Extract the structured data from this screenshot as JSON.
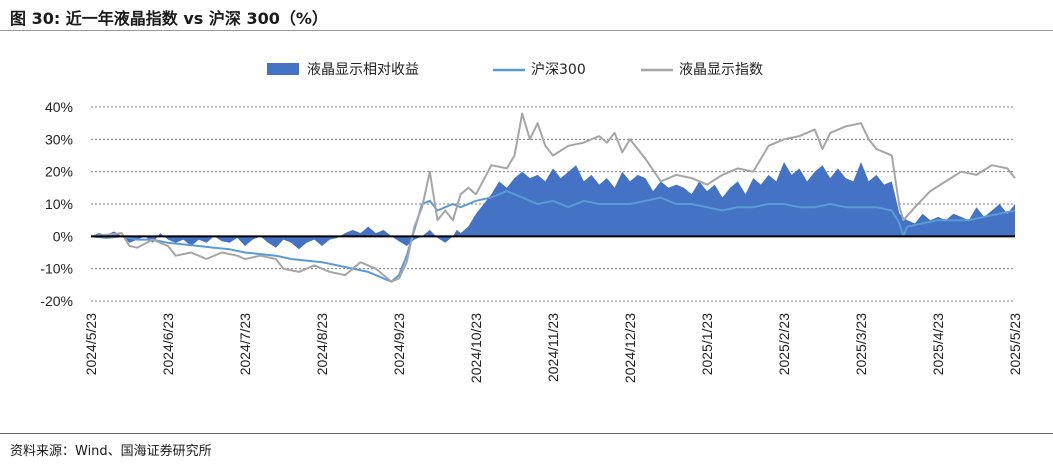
{
  "header": {
    "title": "图 30:  近一年液晶指数 vs 沪深 300（%）"
  },
  "footer": {
    "source": "资料来源：Wind、国海证券研究所"
  },
  "chart_data": {
    "type": "area",
    "title": "近一年液晶指数 vs 沪深 300（%）",
    "xlabel": "",
    "ylabel": "",
    "ylim": [
      -20,
      40
    ],
    "yticks": [
      "40%",
      "30%",
      "20%",
      "10%",
      "0%",
      "-10%",
      "-20%"
    ],
    "yticks_values": [
      40,
      30,
      20,
      10,
      0,
      -10,
      -20
    ],
    "categories": [
      "2024/5/23",
      "2024/6/23",
      "2024/7/23",
      "2024/8/23",
      "2024/9/23",
      "2024/10/23",
      "2024/11/23",
      "2024/12/23",
      "2025/1/23",
      "2025/2/23",
      "2025/3/23",
      "2025/4/23",
      "2025/5/23"
    ],
    "grid": "horizontal dashed",
    "legend_position": "top",
    "series": [
      {
        "name": "液晶显示相对收益",
        "kind": "area",
        "color": "#4472C4",
        "points": [
          [
            0,
            0
          ],
          [
            0.1,
            1
          ],
          [
            0.2,
            0.5
          ],
          [
            0.3,
            1.5
          ],
          [
            0.4,
            0
          ],
          [
            0.5,
            -2
          ],
          [
            0.6,
            -1
          ],
          [
            0.7,
            0
          ],
          [
            0.8,
            -2
          ],
          [
            0.9,
            1
          ],
          [
            1.0,
            -1
          ],
          [
            1.1,
            -2
          ],
          [
            1.2,
            -1
          ],
          [
            1.3,
            -3
          ],
          [
            1.4,
            -1
          ],
          [
            1.5,
            -2
          ],
          [
            1.6,
            0
          ],
          [
            1.7,
            -1.5
          ],
          [
            1.8,
            -2
          ],
          [
            1.9,
            -0.5
          ],
          [
            2.0,
            -3
          ],
          [
            2.1,
            -1
          ],
          [
            2.2,
            0
          ],
          [
            2.3,
            -2
          ],
          [
            2.4,
            -3.5
          ],
          [
            2.5,
            -1
          ],
          [
            2.6,
            -2
          ],
          [
            2.7,
            -4
          ],
          [
            2.8,
            -2
          ],
          [
            2.9,
            -1
          ],
          [
            3.0,
            -3
          ],
          [
            3.1,
            -1
          ],
          [
            3.2,
            -0.5
          ],
          [
            3.3,
            1
          ],
          [
            3.4,
            2
          ],
          [
            3.5,
            1
          ],
          [
            3.6,
            3
          ],
          [
            3.7,
            1
          ],
          [
            3.8,
            2
          ],
          [
            3.9,
            0
          ],
          [
            4.0,
            -1.5
          ],
          [
            4.1,
            -3
          ],
          [
            4.2,
            -1
          ],
          [
            4.3,
            0
          ],
          [
            4.4,
            2
          ],
          [
            4.5,
            -0.5
          ],
          [
            4.6,
            -2
          ],
          [
            4.7,
            0
          ],
          [
            4.75,
            2
          ],
          [
            4.8,
            1
          ],
          [
            4.9,
            3
          ],
          [
            5.0,
            7
          ],
          [
            5.1,
            10
          ],
          [
            5.2,
            13
          ],
          [
            5.3,
            17
          ],
          [
            5.4,
            15
          ],
          [
            5.5,
            18
          ],
          [
            5.6,
            20
          ],
          [
            5.7,
            18
          ],
          [
            5.8,
            19
          ],
          [
            5.9,
            17
          ],
          [
            6.0,
            21
          ],
          [
            6.1,
            18
          ],
          [
            6.2,
            20
          ],
          [
            6.3,
            22
          ],
          [
            6.4,
            17
          ],
          [
            6.5,
            19
          ],
          [
            6.6,
            16
          ],
          [
            6.7,
            18
          ],
          [
            6.8,
            15
          ],
          [
            6.9,
            20
          ],
          [
            7.0,
            17
          ],
          [
            7.1,
            19
          ],
          [
            7.2,
            18
          ],
          [
            7.3,
            14
          ],
          [
            7.4,
            17
          ],
          [
            7.5,
            15
          ],
          [
            7.6,
            16
          ],
          [
            7.7,
            15
          ],
          [
            7.8,
            13
          ],
          [
            7.9,
            17
          ],
          [
            8.0,
            14
          ],
          [
            8.1,
            16
          ],
          [
            8.2,
            12
          ],
          [
            8.3,
            15
          ],
          [
            8.4,
            17
          ],
          [
            8.5,
            13
          ],
          [
            8.6,
            18
          ],
          [
            8.7,
            16
          ],
          [
            8.8,
            19
          ],
          [
            8.9,
            17
          ],
          [
            9.0,
            23
          ],
          [
            9.1,
            19
          ],
          [
            9.2,
            21
          ],
          [
            9.3,
            17
          ],
          [
            9.4,
            20
          ],
          [
            9.5,
            22
          ],
          [
            9.6,
            18
          ],
          [
            9.7,
            21
          ],
          [
            9.8,
            18
          ],
          [
            9.9,
            17
          ],
          [
            10.0,
            23
          ],
          [
            10.1,
            17
          ],
          [
            10.2,
            19
          ],
          [
            10.3,
            16
          ],
          [
            10.4,
            17
          ],
          [
            10.5,
            7
          ],
          [
            10.6,
            5
          ],
          [
            10.7,
            4
          ],
          [
            10.8,
            7
          ],
          [
            10.9,
            5
          ],
          [
            11.0,
            6
          ],
          [
            11.1,
            5
          ],
          [
            11.2,
            7
          ],
          [
            11.3,
            6
          ],
          [
            11.4,
            5
          ],
          [
            11.5,
            9
          ],
          [
            11.6,
            6
          ],
          [
            11.7,
            8
          ],
          [
            11.8,
            10
          ],
          [
            11.9,
            7
          ],
          [
            12.0,
            10
          ]
        ]
      },
      {
        "name": "沪深300",
        "kind": "line",
        "color": "#5B9BD5",
        "points": [
          [
            0,
            0
          ],
          [
            0.2,
            -0.5
          ],
          [
            0.4,
            0
          ],
          [
            0.6,
            -1
          ],
          [
            0.8,
            -1
          ],
          [
            1.0,
            -2
          ],
          [
            1.2,
            -2.5
          ],
          [
            1.4,
            -3
          ],
          [
            1.6,
            -3.5
          ],
          [
            1.8,
            -4
          ],
          [
            2.0,
            -5
          ],
          [
            2.2,
            -5.5
          ],
          [
            2.4,
            -6
          ],
          [
            2.6,
            -7
          ],
          [
            2.8,
            -7.5
          ],
          [
            3.0,
            -8
          ],
          [
            3.2,
            -9
          ],
          [
            3.4,
            -10
          ],
          [
            3.6,
            -11
          ],
          [
            3.8,
            -13
          ],
          [
            3.9,
            -14
          ],
          [
            4.0,
            -12
          ],
          [
            4.1,
            -6
          ],
          [
            4.2,
            2
          ],
          [
            4.3,
            10
          ],
          [
            4.4,
            11
          ],
          [
            4.5,
            8
          ],
          [
            4.6,
            9
          ],
          [
            4.7,
            10
          ],
          [
            4.8,
            9
          ],
          [
            4.9,
            10
          ],
          [
            5.0,
            11
          ],
          [
            5.2,
            12
          ],
          [
            5.4,
            14
          ],
          [
            5.6,
            12
          ],
          [
            5.8,
            10
          ],
          [
            6.0,
            11
          ],
          [
            6.2,
            9
          ],
          [
            6.4,
            11
          ],
          [
            6.6,
            10
          ],
          [
            6.8,
            10
          ],
          [
            7.0,
            10
          ],
          [
            7.2,
            11
          ],
          [
            7.4,
            12
          ],
          [
            7.6,
            10
          ],
          [
            7.8,
            10
          ],
          [
            8.0,
            9
          ],
          [
            8.2,
            8
          ],
          [
            8.4,
            9
          ],
          [
            8.6,
            9
          ],
          [
            8.8,
            10
          ],
          [
            9.0,
            10
          ],
          [
            9.2,
            9
          ],
          [
            9.4,
            9
          ],
          [
            9.6,
            10
          ],
          [
            9.8,
            9
          ],
          [
            10.0,
            9
          ],
          [
            10.2,
            9
          ],
          [
            10.4,
            8
          ],
          [
            10.5,
            4
          ],
          [
            10.55,
            0
          ],
          [
            10.6,
            3
          ],
          [
            10.8,
            4
          ],
          [
            11.0,
            5
          ],
          [
            11.2,
            5
          ],
          [
            11.4,
            5
          ],
          [
            11.6,
            6
          ],
          [
            11.8,
            7
          ],
          [
            12.0,
            8
          ]
        ]
      },
      {
        "name": "液晶显示指数",
        "kind": "line",
        "color": "#A6A6A6",
        "points": [
          [
            0,
            0
          ],
          [
            0.2,
            0.5
          ],
          [
            0.4,
            1
          ],
          [
            0.5,
            -3
          ],
          [
            0.6,
            -3.5
          ],
          [
            0.8,
            -1
          ],
          [
            1.0,
            -3
          ],
          [
            1.1,
            -6
          ],
          [
            1.3,
            -5
          ],
          [
            1.5,
            -7
          ],
          [
            1.7,
            -5
          ],
          [
            1.9,
            -6
          ],
          [
            2.0,
            -7
          ],
          [
            2.2,
            -6
          ],
          [
            2.4,
            -7
          ],
          [
            2.5,
            -10
          ],
          [
            2.7,
            -11
          ],
          [
            2.9,
            -9
          ],
          [
            3.1,
            -11
          ],
          [
            3.3,
            -12
          ],
          [
            3.5,
            -8
          ],
          [
            3.7,
            -10
          ],
          [
            3.9,
            -14
          ],
          [
            4.0,
            -13
          ],
          [
            4.1,
            -8
          ],
          [
            4.2,
            3
          ],
          [
            4.3,
            9
          ],
          [
            4.4,
            20
          ],
          [
            4.5,
            5
          ],
          [
            4.6,
            8
          ],
          [
            4.7,
            5
          ],
          [
            4.8,
            13
          ],
          [
            4.9,
            15
          ],
          [
            5.0,
            13
          ],
          [
            5.2,
            22
          ],
          [
            5.4,
            21
          ],
          [
            5.5,
            25
          ],
          [
            5.6,
            38
          ],
          [
            5.7,
            30
          ],
          [
            5.8,
            35
          ],
          [
            5.9,
            28
          ],
          [
            6.0,
            25
          ],
          [
            6.2,
            28
          ],
          [
            6.4,
            29
          ],
          [
            6.6,
            31
          ],
          [
            6.7,
            29
          ],
          [
            6.8,
            32
          ],
          [
            6.9,
            26
          ],
          [
            7.0,
            30
          ],
          [
            7.1,
            27
          ],
          [
            7.2,
            24
          ],
          [
            7.4,
            17
          ],
          [
            7.6,
            19
          ],
          [
            7.8,
            18
          ],
          [
            8.0,
            16
          ],
          [
            8.2,
            19
          ],
          [
            8.4,
            21
          ],
          [
            8.6,
            20
          ],
          [
            8.8,
            28
          ],
          [
            9.0,
            30
          ],
          [
            9.2,
            31
          ],
          [
            9.4,
            33
          ],
          [
            9.5,
            27
          ],
          [
            9.6,
            32
          ],
          [
            9.8,
            34
          ],
          [
            10.0,
            35
          ],
          [
            10.1,
            30
          ],
          [
            10.2,
            27
          ],
          [
            10.4,
            25
          ],
          [
            10.5,
            9
          ],
          [
            10.55,
            5
          ],
          [
            10.7,
            9
          ],
          [
            10.9,
            14
          ],
          [
            11.1,
            17
          ],
          [
            11.3,
            20
          ],
          [
            11.5,
            19
          ],
          [
            11.7,
            22
          ],
          [
            11.9,
            21
          ],
          [
            12.0,
            18
          ]
        ]
      }
    ]
  }
}
